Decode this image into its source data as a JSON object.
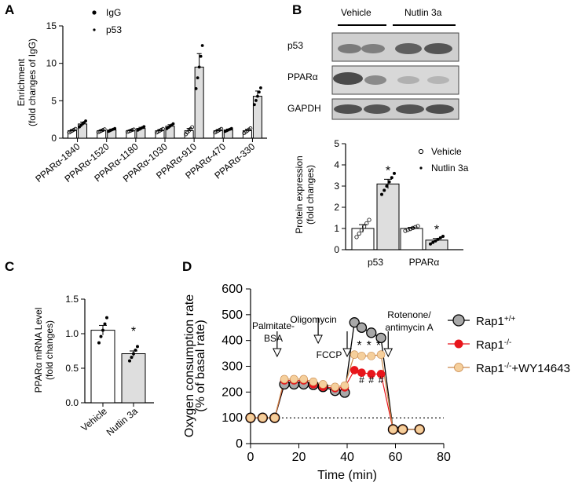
{
  "panel_labels": {
    "a": "A",
    "b": "B",
    "c": "C",
    "d": "D"
  },
  "colors": {
    "bar_fill_1": "#ffffff",
    "bar_fill_2": "#dedede",
    "rap1_wt": "#a8a8a8",
    "rap1_ko": "#e8151b",
    "wy": "#f5cf9c",
    "wy_line": "#c9884a"
  },
  "chart_data": [
    {
      "panel": "A",
      "type": "bar",
      "ylabel": "Enrichment\n(fold changes of IgG)",
      "ylim": [
        0,
        15
      ],
      "yticks": [
        0,
        5,
        10,
        15
      ],
      "categories": [
        "PPARα-1840",
        "PPARα-1520",
        "PPARα-1180",
        "PPARα-1030",
        "PPARα-910",
        "PPARα-470",
        "PPARα-330"
      ],
      "series": [
        {
          "name": "IgG",
          "values": [
            1.0,
            1.0,
            1.0,
            1.0,
            1.0,
            1.0,
            1.0
          ],
          "errors": [
            0.15,
            0.12,
            0.1,
            0.15,
            0.3,
            0.15,
            0.2
          ]
        },
        {
          "name": "p53",
          "values": [
            1.9,
            1.1,
            1.3,
            1.6,
            9.5,
            1.1,
            5.6
          ],
          "errors": [
            0.25,
            0.12,
            0.15,
            0.2,
            1.8,
            0.12,
            0.7
          ]
        }
      ],
      "legend": {
        "position": "top-left"
      }
    },
    {
      "panel": "B",
      "type": "bar",
      "ylabel": "Protein expression\n(fold changes)",
      "ylim": [
        0,
        5
      ],
      "yticks": [
        0,
        1,
        2,
        3,
        4,
        5
      ],
      "categories": [
        "p53",
        "PPARα"
      ],
      "series": [
        {
          "name": "Vehicle",
          "values": [
            1.0,
            1.0
          ],
          "errors": [
            0.18,
            0.05
          ]
        },
        {
          "name": "Nutlin 3a",
          "values": [
            3.1,
            0.45
          ],
          "errors": [
            0.22,
            0.08
          ]
        }
      ],
      "annotations": [
        "*",
        "*"
      ],
      "blot": {
        "groups": [
          "Vehicle",
          "Nutlin 3a"
        ],
        "rows": [
          "p53",
          "PPARα",
          "GAPDH"
        ]
      },
      "legend": {
        "position": "top-right"
      }
    },
    {
      "panel": "C",
      "type": "bar",
      "ylabel": "PPARα mRNA Level\n(fold changes)",
      "ylim": [
        0,
        1.5
      ],
      "yticks": [
        "0.0",
        "0.5",
        "1.0",
        "1.5"
      ],
      "categories": [
        "Vehicle",
        "Nutlin 3a"
      ],
      "values": [
        1.05,
        0.71
      ],
      "errors": [
        0.07,
        0.04
      ],
      "annotations": [
        "*"
      ]
    },
    {
      "panel": "D",
      "type": "line",
      "xlabel": "Time (min)",
      "ylabel": "Oxygen consumption rate\n(% of basal rate)",
      "xlim": [
        0,
        80
      ],
      "ylim": [
        0,
        600
      ],
      "xticks": [
        0,
        20,
        40,
        60,
        80
      ],
      "yticks": [
        0,
        100,
        200,
        300,
        400,
        500,
        600
      ],
      "x": [
        0,
        5,
        10,
        14,
        18,
        22,
        26,
        30,
        35,
        39,
        43,
        46,
        50,
        54,
        59,
        63,
        70
      ],
      "series": [
        {
          "name": "Rap1+/+",
          "values": [
            100,
            100,
            100,
            230,
            230,
            230,
            228,
            220,
            205,
            198,
            470,
            450,
            430,
            410,
            55,
            55,
            55
          ]
        },
        {
          "name": "Rap1-/-",
          "values": [
            100,
            100,
            100,
            245,
            245,
            245,
            230,
            220,
            215,
            218,
            285,
            275,
            270,
            270,
            55,
            55,
            55
          ]
        },
        {
          "name": "Rap1-/-+WY14643",
          "values": [
            100,
            100,
            100,
            250,
            250,
            250,
            240,
            230,
            220,
            225,
            345,
            340,
            340,
            345,
            55,
            55,
            55
          ]
        }
      ],
      "reference_line": 100,
      "injections": [
        "Palmitate-\nBSA",
        "Oligomycin",
        "FCCP",
        "Rotenone/\nantimycin A"
      ],
      "injection_times": [
        11,
        28,
        40,
        57
      ],
      "annotations": [
        "*",
        "*",
        "*",
        "#",
        "#",
        "#"
      ]
    }
  ]
}
